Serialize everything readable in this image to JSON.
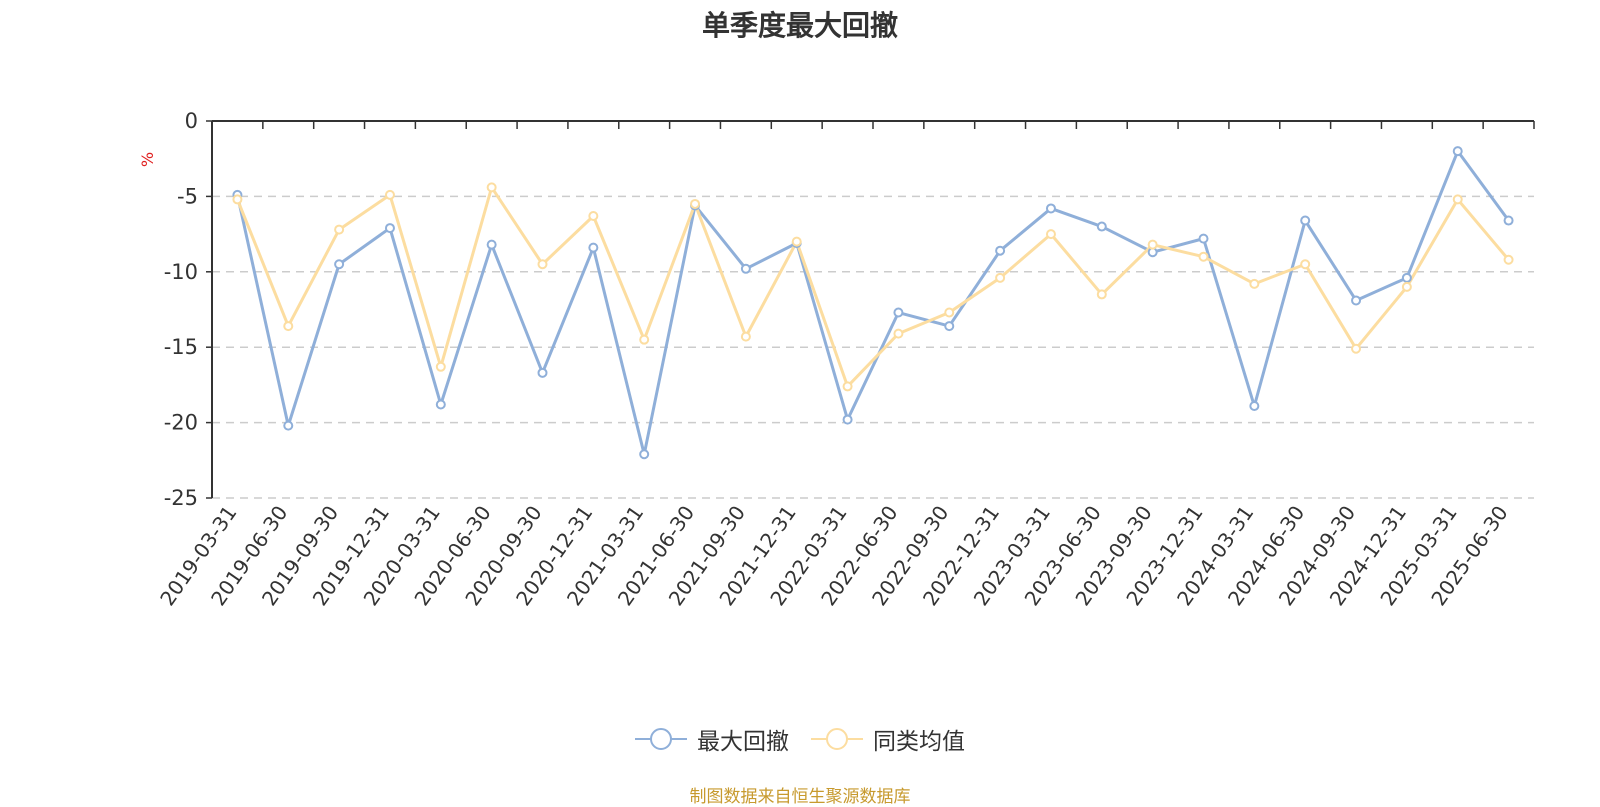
{
  "chart_data": {
    "type": "line",
    "title": "单季度最大回撤",
    "ylabel": "%",
    "ylim": [
      -25,
      0
    ],
    "yticks": [
      0,
      -5,
      -10,
      -15,
      -20,
      -25
    ],
    "grid": "dashed horizontal",
    "legend_position": "bottom-center",
    "categories": [
      "2019-03-31",
      "2019-06-30",
      "2019-09-30",
      "2019-12-31",
      "2020-03-31",
      "2020-06-30",
      "2020-09-30",
      "2020-12-31",
      "2021-03-31",
      "2021-06-30",
      "2021-09-30",
      "2021-12-31",
      "2022-03-31",
      "2022-06-30",
      "2022-09-30",
      "2022-12-31",
      "2023-03-31",
      "2023-06-30",
      "2023-09-30",
      "2023-12-31",
      "2024-03-31",
      "2024-06-30",
      "2024-09-30",
      "2024-12-31",
      "2025-03-31",
      "2025-06-30"
    ],
    "series": [
      {
        "name": "最大回撤",
        "color": "#8fafd9",
        "values": [
          -4.9,
          -20.2,
          -9.5,
          -7.1,
          -18.8,
          -8.2,
          -16.7,
          -8.4,
          -22.1,
          -5.6,
          -9.8,
          -8.1,
          -19.8,
          -12.7,
          -13.6,
          -8.6,
          -5.8,
          -7.0,
          -8.7,
          -7.8,
          -18.9,
          -6.6,
          -11.9,
          -10.4,
          -2.0,
          -6.6
        ]
      },
      {
        "name": "同类均值",
        "color": "#fcdda0",
        "values": [
          -5.2,
          -13.6,
          -7.2,
          -4.9,
          -16.3,
          -4.4,
          -9.5,
          -6.3,
          -14.5,
          -5.5,
          -14.3,
          -8.0,
          -17.6,
          -14.1,
          -12.7,
          -10.4,
          -7.5,
          -11.5,
          -8.2,
          -9.0,
          -10.8,
          -9.5,
          -15.1,
          -11.0,
          -5.2,
          -9.2
        ]
      }
    ]
  },
  "source_text": "制图数据来自恒生聚源数据库"
}
